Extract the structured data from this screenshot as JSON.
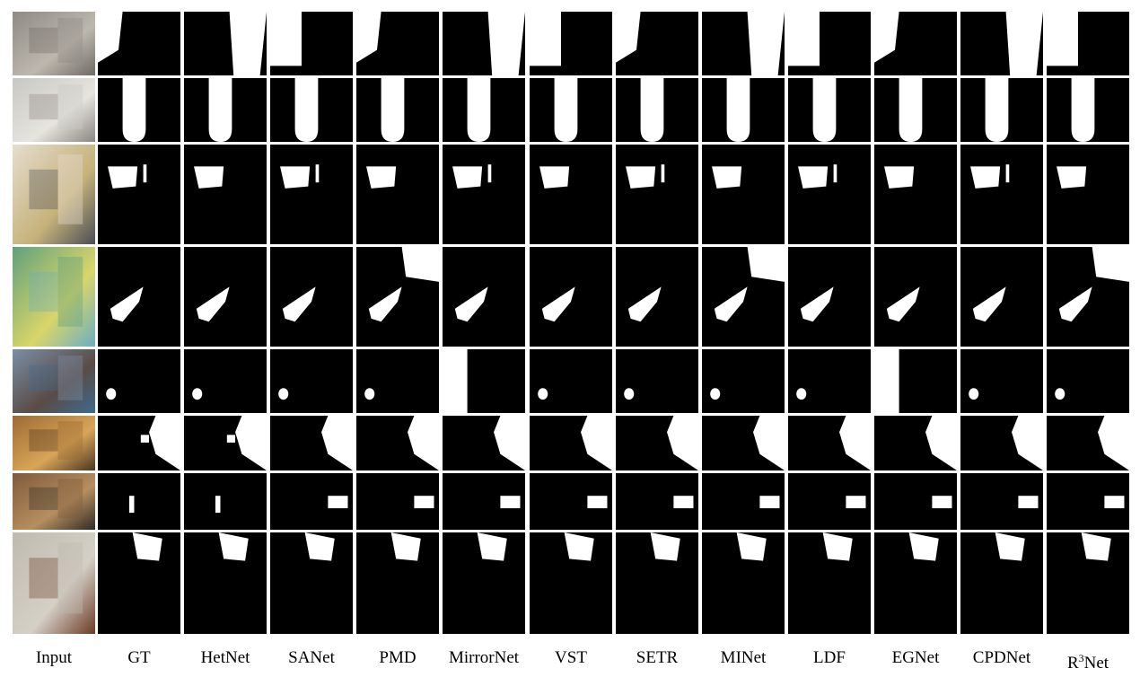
{
  "figure": {
    "columns": [
      {
        "key": "input",
        "label": "Input"
      },
      {
        "key": "gt",
        "label": "GT"
      },
      {
        "key": "hetnet",
        "label": "HetNet"
      },
      {
        "key": "sanet",
        "label": "SANet"
      },
      {
        "key": "pmd",
        "label": "PMD"
      },
      {
        "key": "mirrornet",
        "label": "MirrorNet"
      },
      {
        "key": "vst",
        "label": "VST"
      },
      {
        "key": "setr",
        "label": "SETR"
      },
      {
        "key": "minet",
        "label": "MINet"
      },
      {
        "key": "ldf",
        "label": "LDF"
      },
      {
        "key": "egnet",
        "label": "EGNet"
      },
      {
        "key": "cpdnet",
        "label": "CPDNet"
      },
      {
        "key": "r3net",
        "label": "R",
        "sup": "3",
        "suffix": "Net"
      }
    ],
    "rows": [
      {
        "name": "row-1-bathroom",
        "scene": [
          "#8e8a84",
          "#bdb7ae",
          "#6f6a63"
        ]
      },
      {
        "name": "row-2-toilet-door",
        "scene": [
          "#c9c7c2",
          "#e6e4df",
          "#8a8580"
        ]
      },
      {
        "name": "row-3-mirror-plush",
        "scene": [
          "#e5ddcf",
          "#c6b27a",
          "#4b4d55"
        ]
      },
      {
        "name": "row-4-green-room",
        "scene": [
          "#5fa07d",
          "#d9d56a",
          "#6aaec0"
        ]
      },
      {
        "name": "row-5-street",
        "scene": [
          "#7a8fa6",
          "#5a4b46",
          "#3e6b8f"
        ]
      },
      {
        "name": "row-6-hallway",
        "scene": [
          "#9c6a33",
          "#d8a558",
          "#4a3520"
        ]
      },
      {
        "name": "row-7-living-room",
        "scene": [
          "#7d5a3c",
          "#b68e5f",
          "#2e2a26"
        ]
      },
      {
        "name": "row-8-plush-table",
        "scene": [
          "#bfbab0",
          "#d5d0c6",
          "#6b3b26"
        ]
      }
    ]
  }
}
